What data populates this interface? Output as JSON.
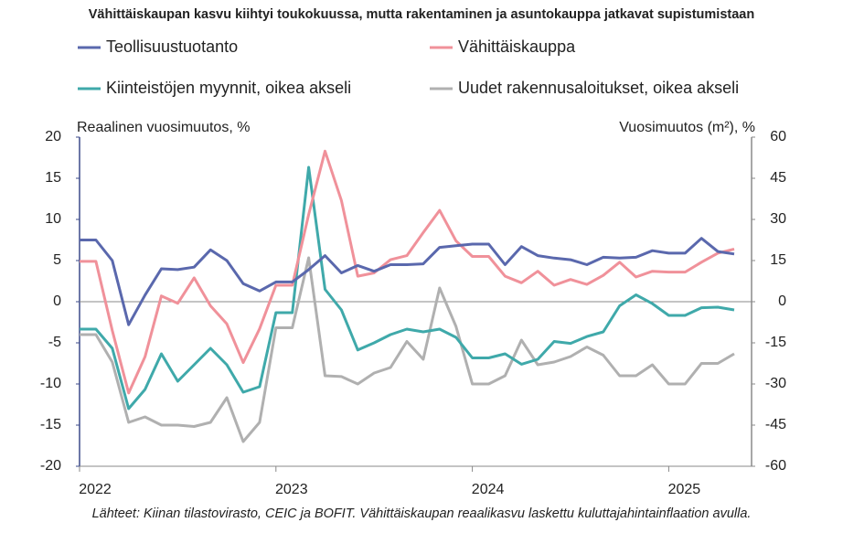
{
  "chart_data": {
    "type": "line",
    "title": "Vähittäiskaupan kasvu kiihtyi toukokuussa, mutta rakentaminen ja asuntokauppa jatkavat supistumistaan",
    "y_label": "Reaalinen vuosimuutos, %",
    "y2_label": "Vuosimuutos (m²), %",
    "source": "Lähteet: Kiinan tilastovirasto, CEIC ja BOFIT. Vähittäiskaupan reaalikasvu laskettu kuluttajahintainflaation avulla.",
    "categories": [
      "2022",
      null,
      null,
      null,
      null,
      null,
      null,
      null,
      null,
      null,
      null,
      null,
      "2023",
      null,
      null,
      null,
      null,
      null,
      null,
      null,
      null,
      null,
      null,
      null,
      "2024",
      null,
      null,
      null,
      null,
      null,
      null,
      null,
      null,
      null,
      null,
      null,
      "2025",
      null,
      null,
      null,
      null
    ],
    "ylim": [
      -20,
      20
    ],
    "yticks": [
      20,
      15,
      10,
      5,
      0,
      -5,
      -10,
      -15,
      -20
    ],
    "y2lim": [
      -60,
      60
    ],
    "y2ticks": [
      60,
      45,
      30,
      15,
      0,
      -15,
      -30,
      -45,
      -60
    ],
    "series": [
      {
        "name": "Teollisuustuotanto",
        "color": "#5a68ad",
        "values": [
          7.5,
          7.5,
          5,
          -2.8,
          0.8,
          4,
          3.9,
          4.2,
          6.3,
          5,
          2.2,
          1.3,
          2.4,
          2.4,
          3.9,
          5.6,
          3.5,
          4.4,
          3.7,
          4.5,
          4.5,
          4.6,
          6.6,
          6.8,
          7,
          7,
          4.5,
          6.7,
          5.6,
          5.3,
          5.1,
          4.5,
          5.4,
          5.3,
          5.4,
          6.2,
          5.9,
          5.9,
          7.7,
          6.1,
          5.8
        ]
      },
      {
        "name": "Vähittäiskauppa",
        "color": "#f0919a",
        "values": [
          4.9,
          4.9,
          -3.5,
          -11.1,
          -6.7,
          0.7,
          -0.2,
          2.9,
          -0.5,
          -2.7,
          -7.4,
          -3.3,
          2,
          2,
          10.6,
          18.3,
          12.3,
          3.1,
          3.5,
          5.1,
          5.6,
          8.4,
          11.1,
          7.4,
          5.5,
          5.5,
          3.1,
          2.3,
          3.7,
          2,
          2.7,
          2.1,
          3.2,
          4.8,
          3,
          3.7,
          3.6,
          3.6,
          4.8,
          5.9,
          6.4
        ]
      },
      {
        "name": "Kiinteistöjen myynnit, oikea akseli",
        "color": "#3fa9aa",
        "axis": "y2",
        "values": [
          -10,
          -10,
          -17,
          -39,
          -32,
          -19,
          -29,
          -23,
          -17,
          -23,
          -33,
          -31,
          -4,
          -4,
          49,
          4.5,
          -3,
          -17.6,
          -15,
          -12,
          -10,
          -11,
          -10,
          -13,
          -20.5,
          -20.5,
          -19,
          -22.8,
          -21,
          -14.5,
          -15.2,
          -12.7,
          -11,
          -1.5,
          2.5,
          -0.7,
          -5,
          -5,
          -2.2,
          -2,
          -3
        ]
      },
      {
        "name": "Uudet rakennusaloitukset, oikea akseli",
        "color": "#b0b0b0",
        "axis": "y2",
        "values": [
          -12,
          -12,
          -22,
          -44,
          -42,
          -45,
          -45,
          -45.5,
          -44,
          -35,
          -51,
          -44,
          -9.5,
          -9.5,
          16,
          -27,
          -27.3,
          -30,
          -26,
          -24,
          -14.5,
          -21,
          5,
          -9,
          -30,
          -30,
          -27,
          -14,
          -23,
          -22,
          -20,
          -16.5,
          -19.5,
          -27,
          -27,
          -23,
          -30,
          -30,
          -22.5,
          -22.5,
          -19
        ]
      }
    ]
  }
}
